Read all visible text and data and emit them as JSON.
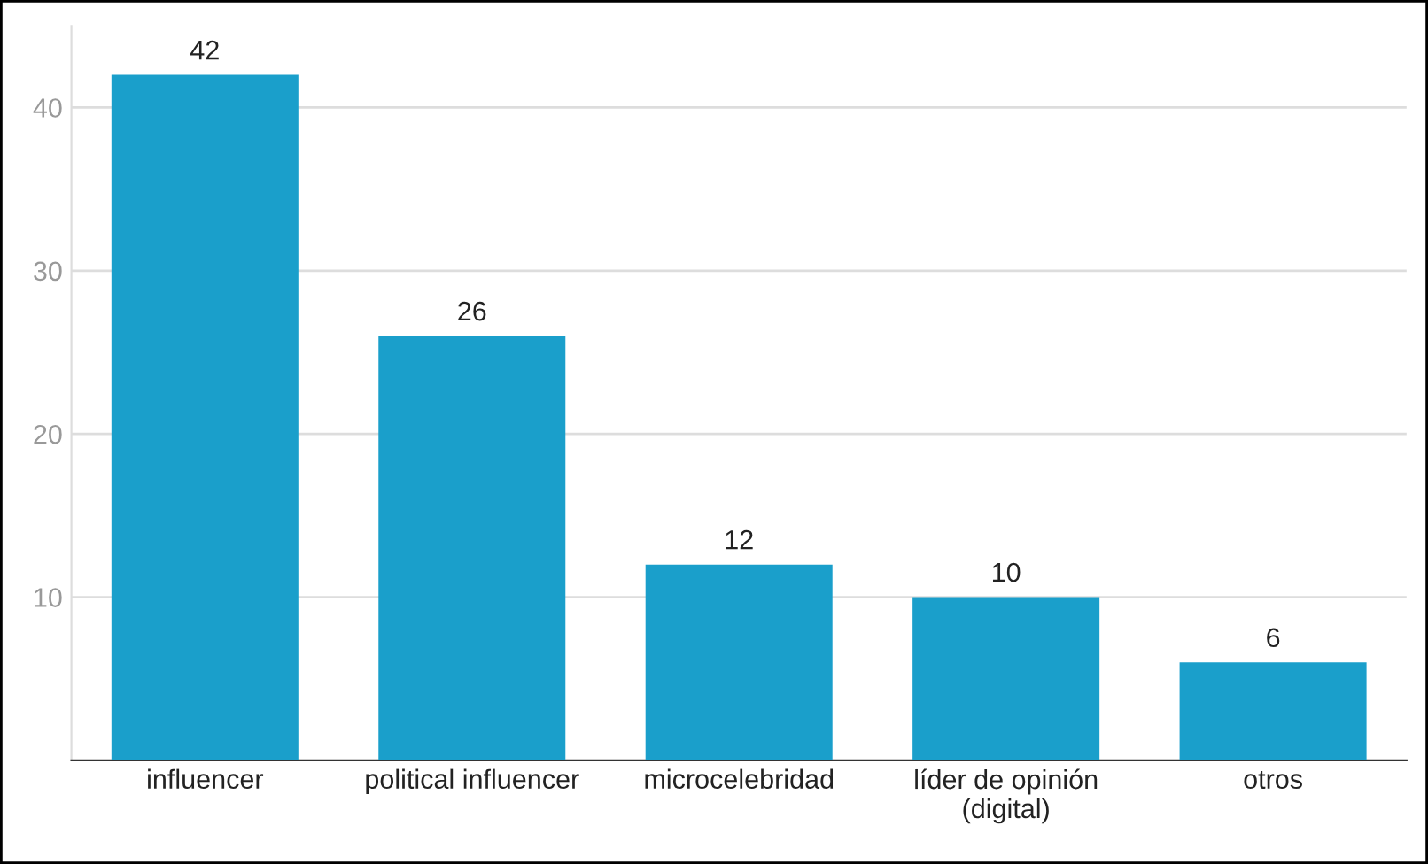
{
  "chart_data": {
    "type": "bar",
    "categories": [
      "influencer",
      "political influencer",
      "microcelebridad",
      "líder de opinión\n(digital)",
      "otros"
    ],
    "values": [
      42,
      26,
      12,
      10,
      6
    ],
    "color": "#1a9fcb",
    "ylim": [
      0,
      45
    ],
    "yticks": [
      10,
      20,
      30,
      40
    ],
    "grid": "y",
    "data_labels": true
  }
}
